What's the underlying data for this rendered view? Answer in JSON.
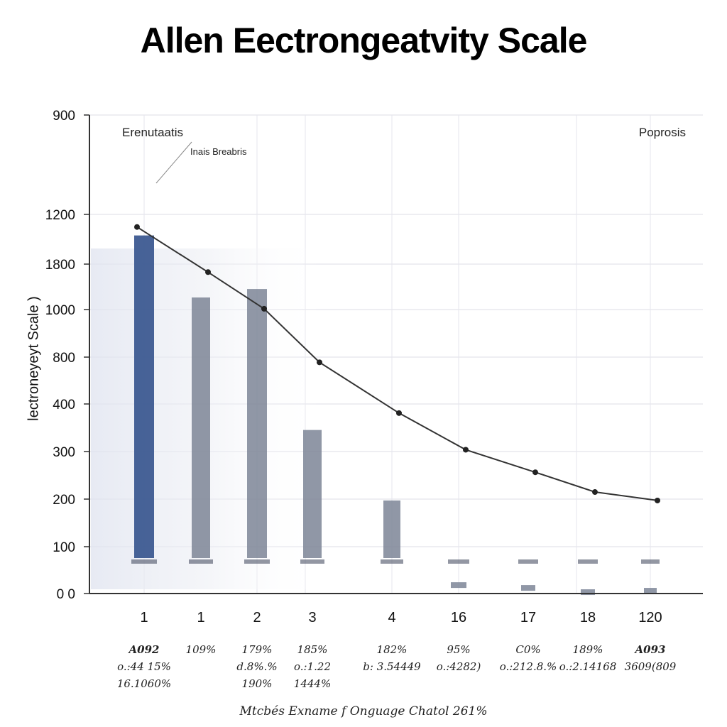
{
  "title": "Allen Eectrongeatvity Scale",
  "ylabel": "lectroneyeyt Scale )",
  "caption": "Mtcbés Exname f Onguage Chatol 261%",
  "chart_data": {
    "type": "bar",
    "title": "Allen Eectrongeatvity Scale",
    "ylabel": "lectroneyeyt Scale )",
    "xlabel": "",
    "y_tick_labels": [
      "0 0",
      "100",
      "200",
      "300",
      "400",
      "800",
      "1000",
      "1800",
      "1200",
      "900"
    ],
    "categories": [
      "1",
      "1",
      "2",
      "3",
      "4",
      "16",
      "17",
      "18",
      "120"
    ],
    "values": [
      1270,
      1050,
      1080,
      580,
      330,
      40,
      30,
      15,
      20
    ],
    "series": [
      {
        "name": "",
        "type": "line",
        "values": [
          1300,
          1140,
          1010,
          820,
          640,
          510,
          430,
          360,
          330
        ]
      }
    ],
    "annotations": [
      "Erenutaatis",
      "Inais Breabris",
      "Poprosis"
    ],
    "x_sublabels": [
      [
        "A092",
        "o.:44 15%",
        "16.1060%"
      ],
      [
        "109%"
      ],
      [
        "179%",
        "d.8%.%",
        "190%"
      ],
      [
        "185%",
        "o.:1.22",
        "1444%"
      ],
      [
        "182%",
        "b: 3.54449"
      ],
      [
        "95%",
        "o.:4282)"
      ],
      [
        "C0%",
        "o.:212.8.%"
      ],
      [
        "189%",
        "o.:2.14168"
      ],
      [
        "A093",
        "3609(809"
      ]
    ],
    "grid": true,
    "colors": {
      "bar_first": "#3d5a91",
      "bar": "#7d8597",
      "line": "#333333",
      "grid": "#dddde6"
    }
  }
}
